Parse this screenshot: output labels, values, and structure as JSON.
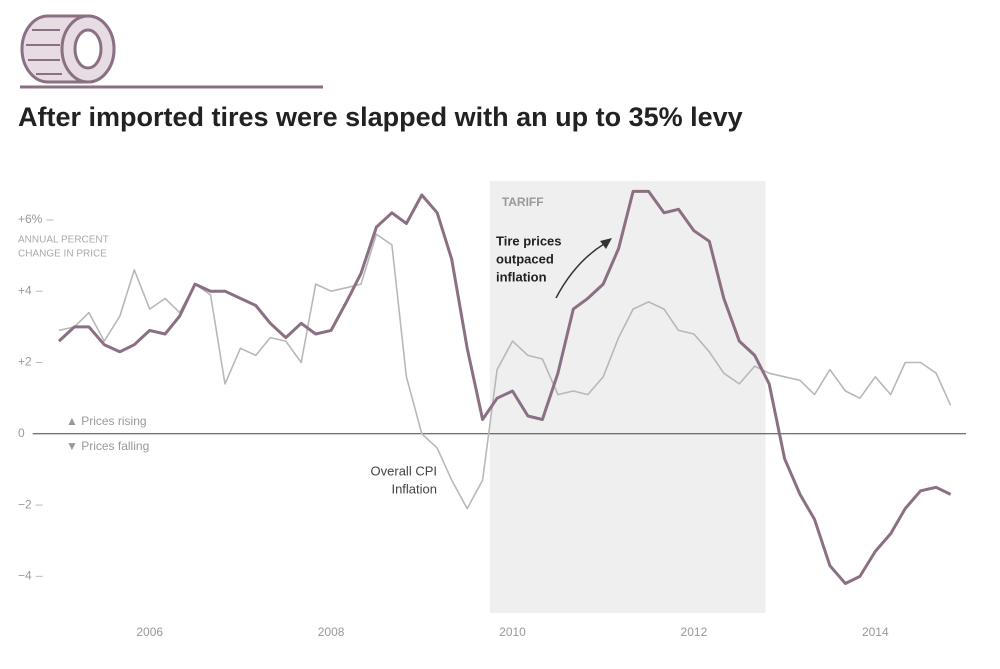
{
  "chart_data": {
    "type": "line",
    "title": "After imported tires were slapped with an up to 35% levy",
    "y_axis_label": [
      "ANNUAL PERCENT",
      "CHANGE IN PRICE"
    ],
    "x": [
      2005.0,
      2005.17,
      2005.33,
      2005.5,
      2005.67,
      2005.83,
      2006.0,
      2006.17,
      2006.33,
      2006.5,
      2006.67,
      2006.83,
      2007.0,
      2007.17,
      2007.33,
      2007.5,
      2007.67,
      2007.83,
      2008.0,
      2008.17,
      2008.33,
      2008.5,
      2008.67,
      2008.83,
      2009.0,
      2009.17,
      2009.33,
      2009.5,
      2009.67,
      2009.83,
      2010.0,
      2010.17,
      2010.33,
      2010.5,
      2010.67,
      2010.83,
      2011.0,
      2011.17,
      2011.33,
      2011.5,
      2011.67,
      2011.83,
      2012.0,
      2012.17,
      2012.33,
      2012.5,
      2012.67,
      2012.83,
      2013.0,
      2013.17,
      2013.33,
      2013.5,
      2013.67,
      2013.83,
      2014.0,
      2014.17,
      2014.33,
      2014.5,
      2014.67,
      2014.83
    ],
    "series": [
      {
        "name": "Tire prices",
        "color": "#8b6f83",
        "values": [
          2.6,
          3.0,
          3.0,
          2.5,
          2.3,
          2.5,
          2.9,
          2.8,
          3.3,
          4.2,
          4.0,
          4.0,
          3.8,
          3.6,
          3.1,
          2.7,
          3.1,
          2.8,
          2.9,
          3.7,
          4.5,
          5.8,
          6.2,
          5.9,
          6.7,
          6.2,
          4.9,
          2.4,
          0.4,
          1.0,
          1.2,
          0.5,
          0.4,
          1.7,
          3.5,
          3.8,
          4.2,
          5.2,
          6.8,
          6.8,
          6.2,
          6.3,
          5.7,
          5.4,
          3.8,
          2.6,
          2.2,
          1.4,
          -0.7,
          -1.7,
          -2.4,
          -3.7,
          -4.2,
          -4.0,
          -3.3,
          -2.8,
          -2.1,
          -1.6,
          -1.5,
          -1.7
        ]
      },
      {
        "name": "Overall CPI",
        "color": "#b8b8b8",
        "values": [
          2.9,
          3.0,
          3.4,
          2.6,
          3.3,
          4.6,
          3.5,
          3.8,
          3.4,
          4.2,
          3.9,
          1.4,
          2.4,
          2.2,
          2.7,
          2.6,
          2.0,
          4.2,
          4.0,
          4.1,
          4.2,
          5.6,
          5.3,
          1.6,
          0.0,
          -0.4,
          -1.3,
          -2.1,
          -1.3,
          1.8,
          2.6,
          2.2,
          2.1,
          1.1,
          1.2,
          1.1,
          1.6,
          2.7,
          3.5,
          3.7,
          3.5,
          2.9,
          2.8,
          2.3,
          1.7,
          1.4,
          1.9,
          1.7,
          1.6,
          1.5,
          1.1,
          1.8,
          1.2,
          1.0,
          1.6,
          1.1,
          2.0,
          2.0,
          1.7,
          0.8
        ]
      }
    ],
    "xlim": [
      2005,
      2015
    ],
    "xticks": [
      2006,
      2008,
      2010,
      2012,
      2014
    ],
    "ylim": [
      -5,
      7.5
    ],
    "yticks": [
      {
        "value": 6,
        "label": "+6%"
      },
      {
        "value": 4,
        "label": "+4"
      },
      {
        "value": 2,
        "label": "+2"
      },
      0,
      {
        "value": -2,
        "label": "−2"
      },
      {
        "value": -4,
        "label": "−4"
      }
    ],
    "tariff_period": [
      2009.75,
      2012.79
    ],
    "tariff_label": "TARIFF",
    "annotations": {
      "tire": [
        "Tire prices",
        "outpaced",
        "inflation"
      ],
      "cpi": [
        "Overall CPI",
        "Inflation"
      ],
      "rising": "▲ Prices rising",
      "falling": "▼ Prices falling"
    }
  }
}
